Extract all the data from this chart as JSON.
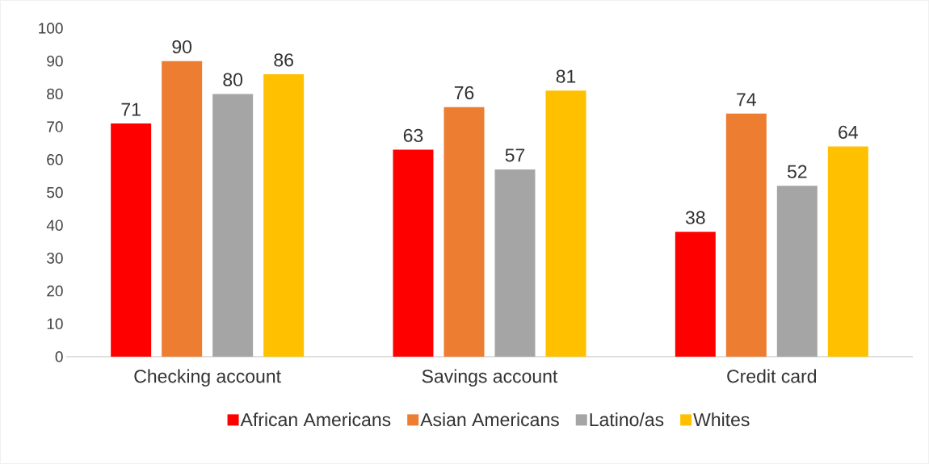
{
  "chart_data": {
    "type": "bar",
    "categories": [
      "Checking account",
      "Savings account",
      "Credit card"
    ],
    "series": [
      {
        "name": "African Americans",
        "color": "#ff0000",
        "values": [
          71,
          63,
          38
        ]
      },
      {
        "name": "Asian Americans",
        "color": "#ed7d31",
        "values": [
          90,
          76,
          74
        ]
      },
      {
        "name": "Latino/as",
        "color": "#a5a5a5",
        "values": [
          80,
          57,
          52
        ]
      },
      {
        "name": "Whites",
        "color": "#ffc000",
        "values": [
          86,
          81,
          64
        ]
      }
    ],
    "ylim": [
      0,
      100
    ],
    "yticks": [
      0,
      10,
      20,
      30,
      40,
      50,
      60,
      70,
      80,
      90,
      100
    ],
    "data_labels": true,
    "legend": "bottom",
    "grid": false
  }
}
